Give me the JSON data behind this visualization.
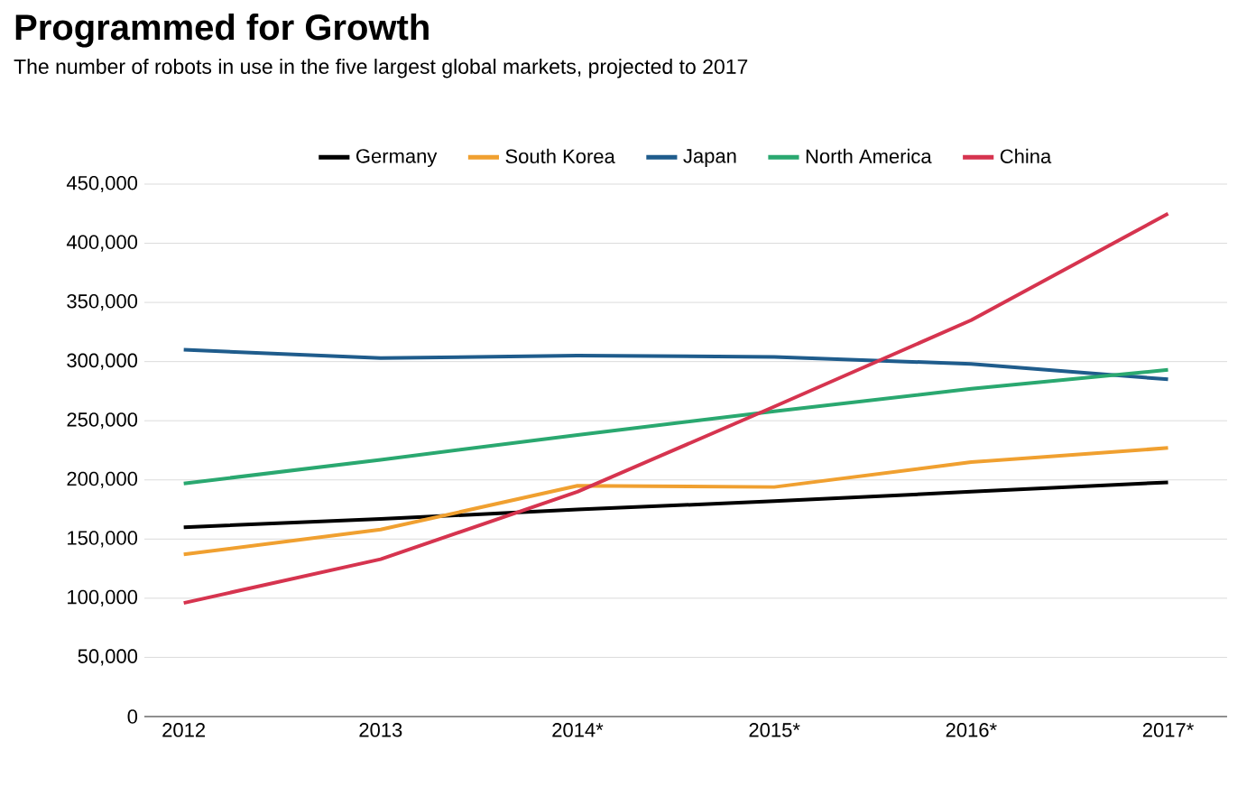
{
  "chart_data": {
    "type": "line",
    "title": "Programmed for Growth",
    "subtitle": "The number of robots in use in the five largest global markets, projected to 2017",
    "categories": [
      "2012",
      "2013",
      "2014*",
      "2015*",
      "2016*",
      "2017*"
    ],
    "series": [
      {
        "name": "Germany",
        "color": "#000000",
        "values": [
          160000,
          167000,
          175000,
          182000,
          190000,
          198000
        ]
      },
      {
        "name": "South Korea",
        "color": "#f0a030",
        "values": [
          137000,
          158000,
          195000,
          194000,
          215000,
          227000
        ]
      },
      {
        "name": "Japan",
        "color": "#1f5c8c",
        "values": [
          310000,
          303000,
          305000,
          304000,
          298000,
          285000
        ]
      },
      {
        "name": "North America",
        "color": "#2aa870",
        "values": [
          197000,
          217000,
          238000,
          258000,
          277000,
          293000
        ]
      },
      {
        "name": "China",
        "color": "#d6344f",
        "values": [
          96000,
          133000,
          190000,
          262000,
          335000,
          425000
        ]
      }
    ],
    "ylim": [
      0,
      450000
    ],
    "yticks": [
      0,
      {
        "value": 50000,
        "label": "50,000"
      },
      {
        "value": 100000,
        "label": "100,000"
      },
      {
        "value": 150000,
        "label": "150,000"
      },
      {
        "value": 200000,
        "label": "200,000"
      },
      {
        "value": 250000,
        "label": "250,000"
      },
      {
        "value": 300000,
        "label": "300,000"
      },
      {
        "value": 350000,
        "label": "350,000"
      },
      {
        "value": 400000,
        "label": "400,000"
      },
      {
        "value": 450000,
        "label": "450,000"
      }
    ],
    "grid": "y",
    "legend": "top",
    "marker": "none",
    "line_style": "solid"
  }
}
